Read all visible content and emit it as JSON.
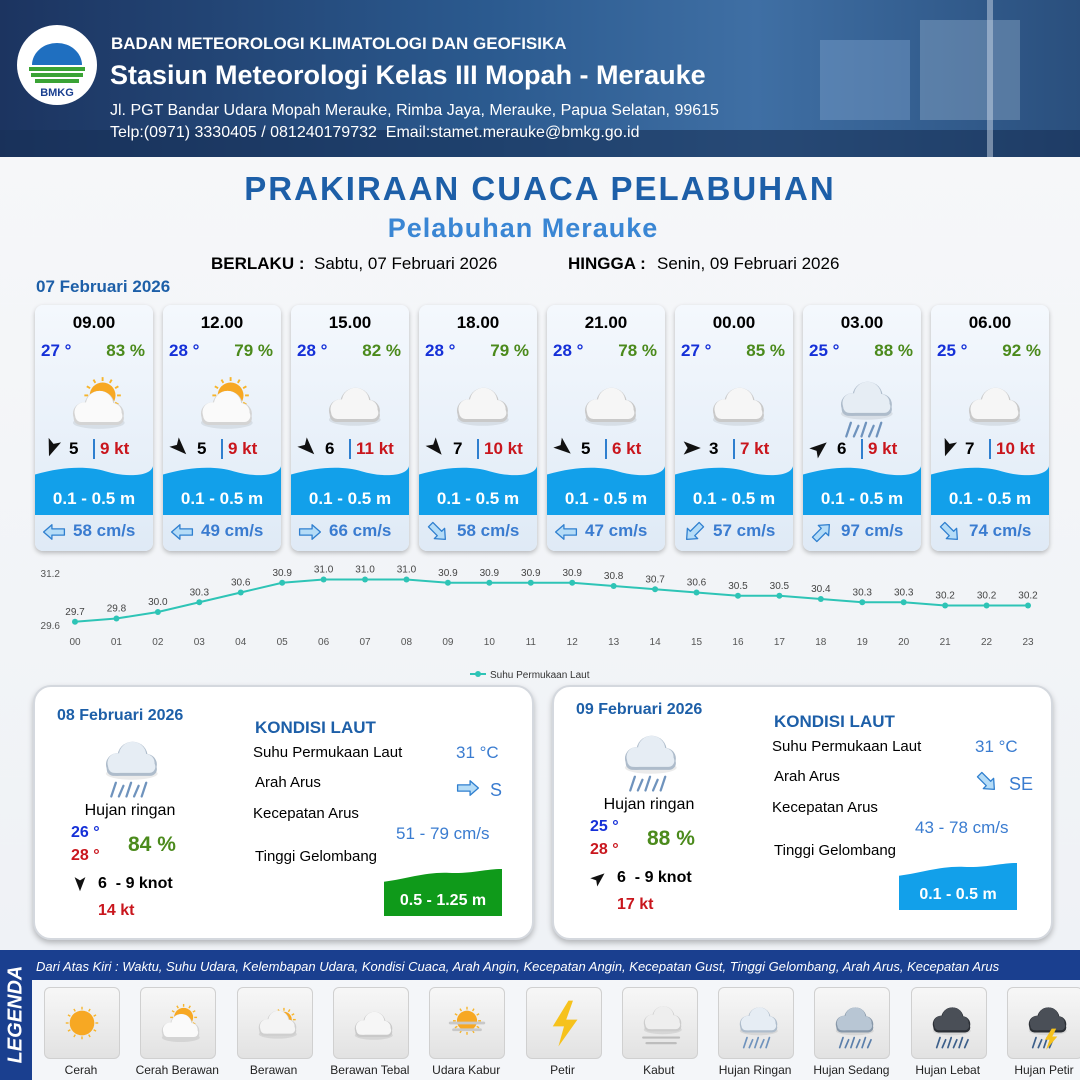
{
  "header": {
    "logo_text": "BMKG",
    "organization": "BADAN METEOROLOGI KLIMATOLOGI DAN GEOFISIKA",
    "station": "Stasiun Meteorologi Kelas III Mopah - Merauke",
    "address": "Jl. PGT Bandar Udara Mopah Merauke, Rimba Jaya, Merauke, Papua Selatan, 99615",
    "contact": "Telp:(0971) 3330405 / 081240179732  Email:stamet.merauke@bmkg.go.id"
  },
  "title": "PRAKIRAAN CUACA PELABUHAN",
  "subtitle": "Pelabuhan Merauke",
  "validity": {
    "from_label": "BERLAKU :",
    "from": "Sabtu, 07 Februari 2026",
    "to_label": "HINGGA :",
    "to": "Senin, 09 Februari 2026"
  },
  "day1_date": "07 Februari 2026",
  "forecasts": [
    {
      "time": "09.00",
      "temp": "27 °",
      "humidity": "83 %",
      "wind": "5",
      "gust": "9 kt",
      "wave": "0.1 - 0.5 m",
      "current": "58 cm/s"
    },
    {
      "time": "12.00",
      "temp": "28 °",
      "humidity": "79 %",
      "wind": "5",
      "gust": "9 kt",
      "wave": "0.1 - 0.5 m",
      "current": "49 cm/s"
    },
    {
      "time": "15.00",
      "temp": "28 °",
      "humidity": "82 %",
      "wind": "6",
      "gust": "11 kt",
      "wave": "0.1 - 0.5 m",
      "current": "66 cm/s"
    },
    {
      "time": "18.00",
      "temp": "28 °",
      "humidity": "79 %",
      "wind": "7",
      "gust": "10 kt",
      "wave": "0.1 - 0.5 m",
      "current": "58 cm/s"
    },
    {
      "time": "21.00",
      "temp": "28 °",
      "humidity": "78 %",
      "wind": "5",
      "gust": "6 kt",
      "wave": "0.1 - 0.5 m",
      "current": "47 cm/s"
    },
    {
      "time": "00.00",
      "temp": "27 °",
      "humidity": "85 %",
      "wind": "3",
      "gust": "7 kt",
      "wave": "0.1 - 0.5 m",
      "current": "57 cm/s"
    },
    {
      "time": "03.00",
      "temp": "25 °",
      "humidity": "88 %",
      "wind": "6",
      "gust": "9 kt",
      "wave": "0.1 - 0.5 m",
      "current": "97 cm/s"
    },
    {
      "time": "06.00",
      "temp": "25 °",
      "humidity": "92 %",
      "wind": "7",
      "gust": "10 kt",
      "wave": "0.1 - 0.5 m",
      "current": "74 cm/s"
    }
  ],
  "chart_data": {
    "type": "line",
    "categories": [
      "00",
      "01",
      "02",
      "03",
      "04",
      "05",
      "06",
      "07",
      "08",
      "09",
      "10",
      "11",
      "12",
      "13",
      "14",
      "15",
      "16",
      "17",
      "18",
      "19",
      "20",
      "21",
      "22",
      "23"
    ],
    "series": [
      {
        "name": "Suhu Permukaan Laut",
        "color": "#2ec4b6",
        "values": [
          29.7,
          29.8,
          30.0,
          30.3,
          30.6,
          30.9,
          31.0,
          31.0,
          31.0,
          30.9,
          30.9,
          30.9,
          30.9,
          30.8,
          30.7,
          30.6,
          30.5,
          30.5,
          30.4,
          30.3,
          30.3,
          30.2,
          30.2,
          30.2
        ],
        "value_labels": [
          "29.7",
          "29.8",
          "30.0",
          "30.3",
          "30.6",
          "30.9",
          "31.0",
          "31.0",
          "31.0",
          "30.9",
          "30.9",
          "30.9",
          "30.9",
          "30.8",
          "30.7",
          "30.6",
          "30.5",
          "30.5",
          "30.4",
          "30.3",
          "30.3",
          "30.2",
          "30.2",
          "30.2"
        ]
      }
    ],
    "ylim": [
      29.6,
      31.2
    ],
    "yticks": [
      29.6,
      31.2
    ],
    "legend": "bottom"
  },
  "days": [
    {
      "date": "08 Februari 2026",
      "weather": "Hujan ringan",
      "tmin": "26 °",
      "tmax": "28 °",
      "humidity": "84 %",
      "wind": "6  - 9 knot",
      "gust": "14 kt",
      "section": "KONDISI LAUT",
      "sst_label": "Suhu Permukaan Laut",
      "sst": "31 °C",
      "dir_label": "Arah Arus",
      "dir": "S",
      "speed_label": "Kecepatan Arus",
      "speed": "51 - 79 cm/s",
      "wave_label": "Tinggi Gelombang",
      "wave": "0.5 - 1.25 m"
    },
    {
      "date": "09 Februari 2026",
      "weather": "Hujan ringan",
      "tmin": "25 °",
      "tmax": "28 °",
      "humidity": "88 %",
      "wind": "6  - 9 knot",
      "gust": "17 kt",
      "section": "KONDISI LAUT",
      "sst_label": "Suhu Permukaan Laut",
      "sst": "31 °C",
      "dir_label": "Arah Arus",
      "dir": "SE",
      "speed_label": "Kecepatan Arus",
      "speed": "43 - 78 cm/s",
      "wave_label": "Tinggi Gelombang",
      "wave": "0.1 - 0.5 m"
    }
  ],
  "legend": {
    "title": "LEGENDA",
    "description": "Dari Atas Kiri : Waktu, Suhu Udara, Kelembapan Udara, Kondisi Cuaca, Arah Angin, Kecepatan Angin, Kecepatan Gust, Tinggi Gelombang, Arah Arus, Kecepatan Arus",
    "items": [
      "Cerah",
      "Cerah Berawan",
      "Berawan",
      "Berawan Tebal",
      "Udara Kabur",
      "Petir",
      "Kabut",
      "Hujan Ringan",
      "Hujan Sedang",
      "Hujan Lebat",
      "Hujan Petir"
    ]
  }
}
